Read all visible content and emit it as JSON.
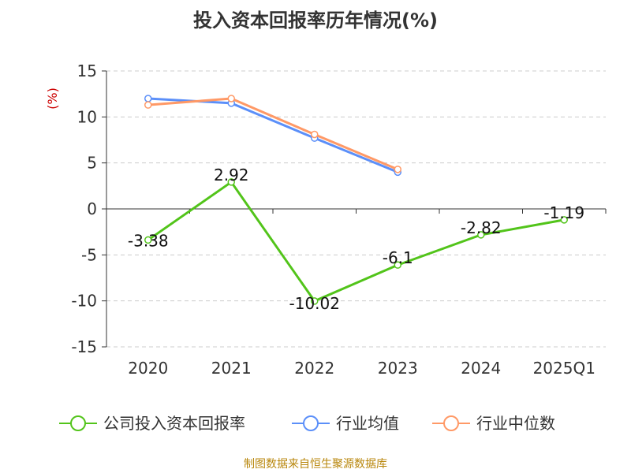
{
  "chart_data": {
    "type": "line",
    "title": "投入资本回报率历年情况(%)",
    "ylabel": "(%)",
    "xlabel": "",
    "categories": [
      "2020",
      "2021",
      "2022",
      "2023",
      "2024",
      "2025Q1"
    ],
    "ylim": [
      -15,
      15
    ],
    "yticks": [
      -15,
      -10,
      -5,
      0,
      5,
      10,
      15
    ],
    "grid": true,
    "legend_position": "bottom",
    "series": [
      {
        "name": "公司投入资本回报率",
        "color": "#52c41a",
        "values": [
          -3.38,
          2.92,
          -10.02,
          -6.1,
          -2.82,
          -1.19
        ],
        "show_labels": true
      },
      {
        "name": "行业均值",
        "color": "#5b8ff9",
        "values": [
          12.0,
          11.5,
          7.7,
          4.0,
          null,
          null
        ],
        "show_labels": false
      },
      {
        "name": "行业中位数",
        "color": "#ff9966",
        "values": [
          11.3,
          12.0,
          8.1,
          4.3,
          null,
          null
        ],
        "show_labels": false
      }
    ]
  },
  "source": "制图数据来自恒生聚源数据库"
}
